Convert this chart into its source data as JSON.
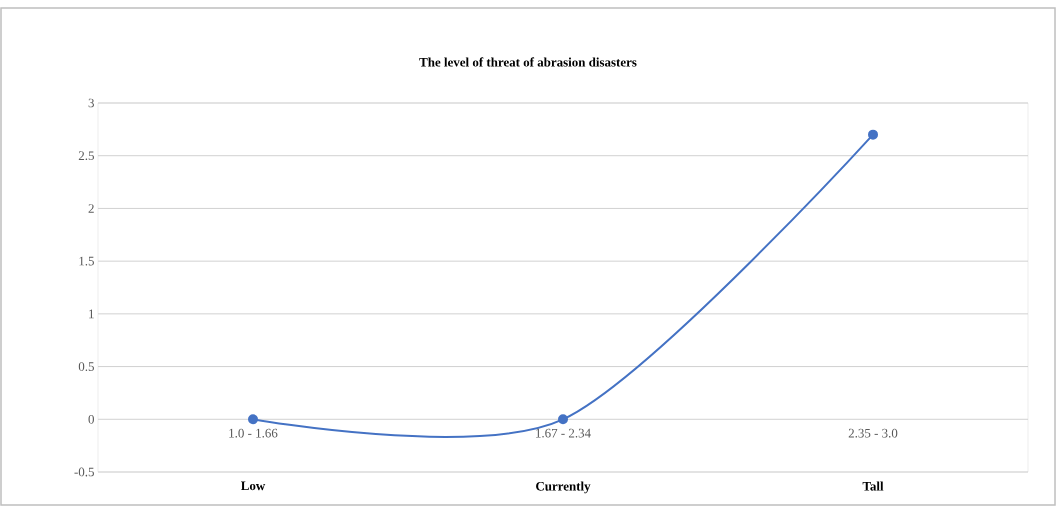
{
  "chart_data": {
    "type": "line",
    "title": "The level of threat of abrasion disasters",
    "categories": [
      "1.0 - 1.66",
      "1.67 - 2.34",
      "2.35 - 3.0"
    ],
    "values": [
      0,
      0,
      2.7
    ],
    "color": "#4472c4",
    "marker": "circle",
    "line_style": "solid",
    "ylim": [
      -0.5,
      3
    ],
    "yticks": [
      -0.5,
      0,
      0.5,
      1,
      1.5,
      2,
      2.5,
      3
    ],
    "grid": true,
    "annotations": [
      "Low",
      "Currently",
      "Tall"
    ]
  }
}
